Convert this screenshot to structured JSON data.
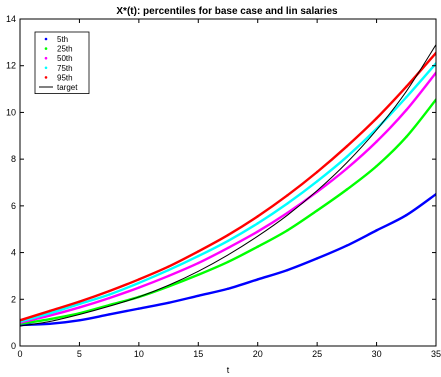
{
  "chart_data": {
    "type": "line",
    "title": "X*(t): percentiles for base case and lin salaries",
    "xlabel": "t",
    "ylabel": "",
    "xlim": [
      0,
      35
    ],
    "ylim": [
      0,
      14
    ],
    "xticks": [
      0,
      5,
      10,
      15,
      20,
      25,
      30,
      35
    ],
    "yticks": [
      0,
      2,
      4,
      6,
      8,
      10,
      12,
      14
    ],
    "grid": false,
    "legend": "top-left",
    "x": [
      0,
      2.5,
      5,
      7.5,
      10,
      12.5,
      15,
      17.5,
      20,
      22.5,
      25,
      27.5,
      30,
      32.5,
      35
    ],
    "series": [
      {
        "name": "5th",
        "color": "#0000ff",
        "style": "points",
        "values": [
          0.9,
          0.95,
          1.1,
          1.35,
          1.6,
          1.85,
          2.15,
          2.45,
          2.85,
          3.25,
          3.75,
          4.3,
          4.95,
          5.6,
          6.5
        ]
      },
      {
        "name": "25th",
        "color": "#00ff00",
        "style": "points",
        "values": [
          0.95,
          1.15,
          1.4,
          1.75,
          2.1,
          2.55,
          3.05,
          3.6,
          4.25,
          4.95,
          5.8,
          6.7,
          7.7,
          8.95,
          10.55
        ]
      },
      {
        "name": "50th",
        "color": "#ff00ff",
        "style": "points",
        "values": [
          1.0,
          1.3,
          1.65,
          2.05,
          2.5,
          3.0,
          3.55,
          4.2,
          4.9,
          5.7,
          6.6,
          7.6,
          8.75,
          10.1,
          11.7
        ]
      },
      {
        "name": "75th",
        "color": "#00ffff",
        "style": "points",
        "values": [
          1.05,
          1.4,
          1.8,
          2.2,
          2.7,
          3.25,
          3.85,
          4.5,
          5.25,
          6.1,
          7.05,
          8.1,
          9.3,
          10.65,
          12.1
        ]
      },
      {
        "name": "95th",
        "color": "#ff0000",
        "style": "points",
        "values": [
          1.1,
          1.5,
          1.9,
          2.35,
          2.85,
          3.4,
          4.05,
          4.75,
          5.55,
          6.45,
          7.45,
          8.55,
          9.75,
          11.1,
          12.55
        ]
      },
      {
        "name": "target",
        "color": "#000000",
        "style": "line",
        "values": [
          0.85,
          1.05,
          1.35,
          1.7,
          2.1,
          2.6,
          3.2,
          3.9,
          4.7,
          5.6,
          6.65,
          7.85,
          9.25,
          10.9,
          12.9
        ]
      }
    ]
  }
}
